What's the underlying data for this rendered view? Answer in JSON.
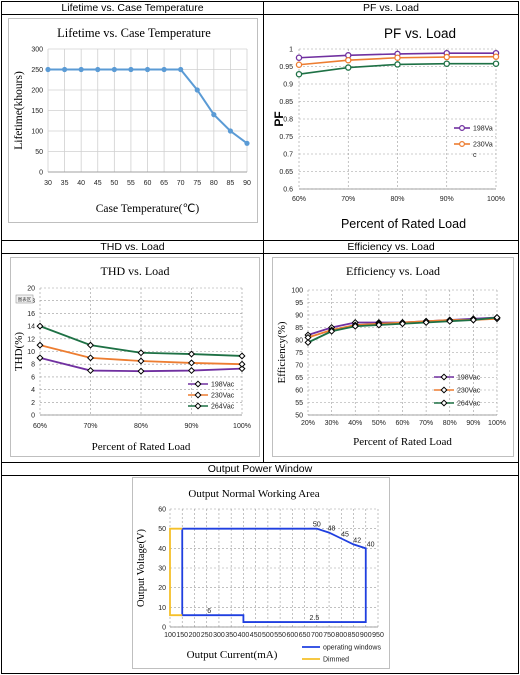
{
  "headers": {
    "lifetime": "Lifetime vs. Case Temperature",
    "pf": "PF vs. Load",
    "thd": "THD vs. Load",
    "efficiency": "Efficiency vs. Load",
    "power_window": "Output Power Window"
  },
  "chart_data": [
    {
      "id": "lifetime",
      "type": "line",
      "title": "Lifetime vs. Case Temperature",
      "xlabel": "Case Temperature(℃)",
      "ylabel": "Lifetime(khours)",
      "x": [
        30,
        35,
        40,
        45,
        50,
        55,
        60,
        65,
        70,
        75,
        80,
        85,
        90
      ],
      "xlim": [
        30,
        90
      ],
      "ylim": [
        0,
        300
      ],
      "yticks": [
        0,
        50,
        100,
        150,
        200,
        250,
        300
      ],
      "grid": true,
      "color": "#5B9BD5",
      "series": [
        {
          "values": [
            250,
            250,
            250,
            250,
            250,
            250,
            250,
            250,
            250,
            200,
            140,
            100,
            70
          ]
        }
      ]
    },
    {
      "id": "pf",
      "type": "line",
      "title": "PF vs. Load",
      "xlabel": "Percent of Rated Load",
      "ylabel": "PF",
      "categories": [
        "60%",
        "70%",
        "80%",
        "90%",
        "100%"
      ],
      "ylim": [
        0.6,
        1
      ],
      "yticks": [
        "0.6",
        "0.65",
        "0.7",
        "0.75",
        "0.8",
        "0.85",
        "0.9",
        "0.95",
        "1"
      ],
      "grid": true,
      "legend": "right",
      "series": [
        {
          "name": "198Va",
          "color": "#7030A0",
          "marker": "circle",
          "values": [
            0.975,
            0.982,
            0.986,
            0.988,
            0.988
          ]
        },
        {
          "name": "230Va",
          "color": "#ED7D31",
          "marker": "circle",
          "values": [
            0.955,
            0.968,
            0.975,
            0.977,
            0.978
          ]
        },
        {
          "name": "c",
          "color": "#1E7145",
          "marker": "circle",
          "values": [
            0.928,
            0.947,
            0.956,
            0.958,
            0.958
          ]
        }
      ]
    },
    {
      "id": "thd",
      "type": "line",
      "title": "THD vs. Load",
      "xlabel": "Percent of Rated Load",
      "ylabel": "THD(%)",
      "badge": "图表区",
      "categories": [
        "60%",
        "70%",
        "80%",
        "90%",
        "100%"
      ],
      "ylim": [
        0,
        20
      ],
      "yticks": [
        "0",
        "2",
        "4",
        "6",
        "8",
        "10",
        "12",
        "14",
        "16",
        "18",
        "20"
      ],
      "grid": true,
      "legend": "bottom-right",
      "series": [
        {
          "name": "198Vac",
          "color": "#7030A0",
          "marker": "diamond",
          "values": [
            9,
            7,
            6.9,
            7,
            7.3
          ]
        },
        {
          "name": "230Vac",
          "color": "#ED7D31",
          "marker": "diamond",
          "values": [
            11,
            9,
            8.5,
            8.2,
            8
          ]
        },
        {
          "name": "264Vac",
          "color": "#1E7145",
          "marker": "diamond",
          "values": [
            14,
            11,
            9.8,
            9.6,
            9.3
          ]
        }
      ]
    },
    {
      "id": "efficiency",
      "type": "line",
      "title": "Efficiency vs. Load",
      "xlabel": "Percent of Rated Load",
      "ylabel": "Efficiency(%)",
      "categories": [
        "20%",
        "30%",
        "40%",
        "50%",
        "60%",
        "70%",
        "80%",
        "90%",
        "100%"
      ],
      "ylim": [
        50,
        100
      ],
      "yticks": [
        "50",
        "55",
        "60",
        "65",
        "70",
        "75",
        "80",
        "85",
        "90",
        "95",
        "100"
      ],
      "grid": true,
      "legend": "bottom-right",
      "series": [
        {
          "name": "198Vac",
          "color": "#7030A0",
          "marker": "diamond",
          "values": [
            82,
            85,
            87,
            87,
            87,
            87.5,
            88,
            88.5,
            89
          ]
        },
        {
          "name": "230Vac",
          "color": "#ED7D31",
          "marker": "diamond",
          "values": [
            81,
            84,
            86,
            86.5,
            87,
            87.5,
            88,
            88,
            88.5
          ]
        },
        {
          "name": "264Vac",
          "color": "#1E7145",
          "marker": "diamond",
          "values": [
            79,
            83.5,
            85.5,
            86,
            86.5,
            87,
            87.5,
            88,
            89
          ]
        }
      ]
    },
    {
      "id": "power_window",
      "type": "line",
      "title": "Output Normal Working Area",
      "xlabel": "Output Current(mA)",
      "ylabel": "Output Voltage(V)",
      "xticks": [
        "100",
        "150",
        "200",
        "250",
        "300",
        "350",
        "400",
        "450",
        "500",
        "550",
        "600",
        "650",
        "700",
        "750",
        "800",
        "850",
        "900",
        "950"
      ],
      "xlim": [
        100,
        950
      ],
      "ylim": [
        0,
        60
      ],
      "yticks": [
        "0",
        "10",
        "20",
        "30",
        "40",
        "50",
        "60"
      ],
      "grid": true,
      "legend": "bottom-right",
      "annotations": [
        {
          "text": "6",
          "x": 260,
          "y": 6
        },
        {
          "text": "2.5",
          "x": 690,
          "y": 2.5
        },
        {
          "text": "50",
          "x": 700,
          "y": 50
        },
        {
          "text": "48",
          "x": 760,
          "y": 48
        },
        {
          "text": "45",
          "x": 815,
          "y": 45
        },
        {
          "text": "42",
          "x": 865,
          "y": 42
        },
        {
          "text": "40",
          "x": 920,
          "y": 40
        }
      ],
      "series": [
        {
          "name": "operating windows",
          "color": "#1F3FE0",
          "points": [
            [
              150,
              50
            ],
            [
              700,
              50
            ],
            [
              750,
              48
            ],
            [
              800,
              45
            ],
            [
              850,
              42
            ],
            [
              900,
              40
            ],
            [
              900,
              2.5
            ],
            [
              400,
              2.5
            ],
            [
              400,
              6
            ],
            [
              150,
              6
            ],
            [
              150,
              50
            ]
          ]
        },
        {
          "name": "Dimmed",
          "color": "#F5C02A",
          "points": [
            [
              150,
              50
            ],
            [
              100,
              50
            ],
            [
              100,
              6
            ],
            [
              150,
              6
            ]
          ]
        }
      ]
    }
  ]
}
